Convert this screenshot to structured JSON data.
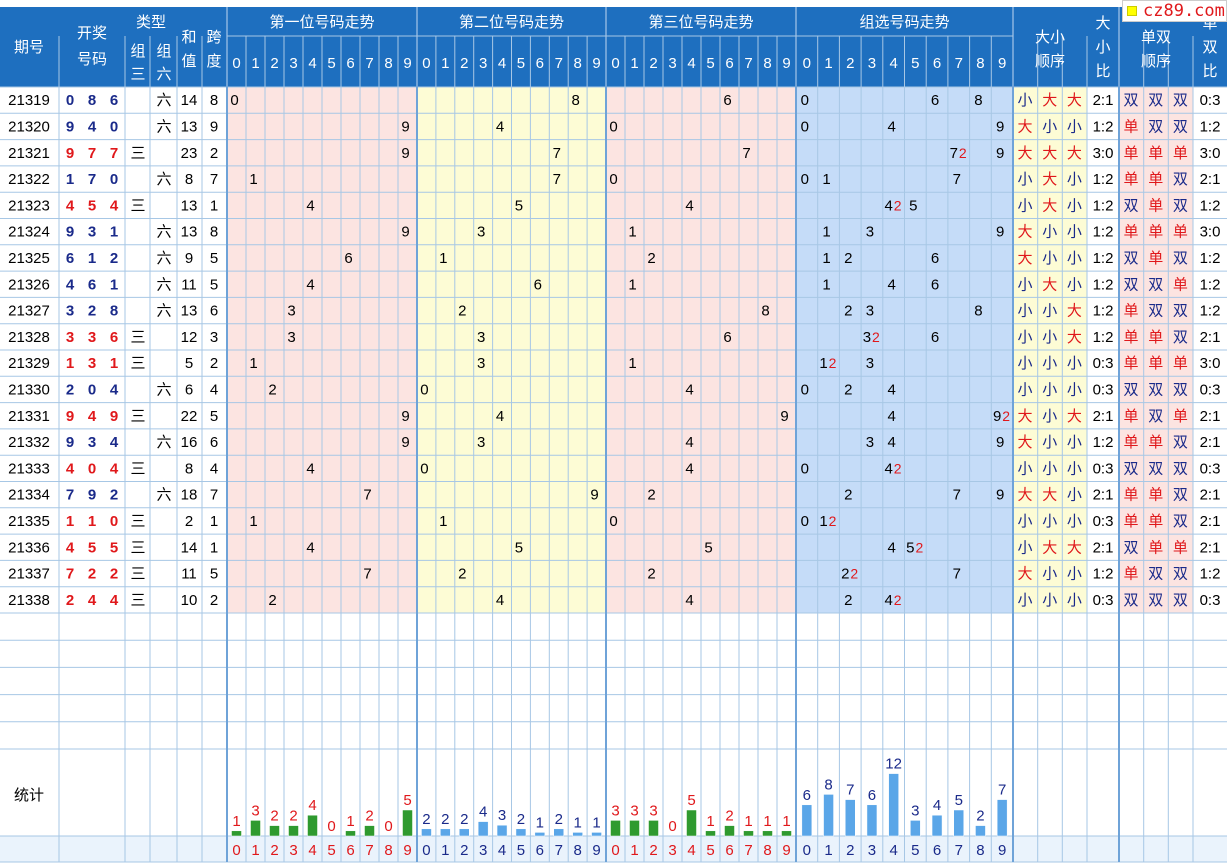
{
  "logo": {
    "text": "cz89.com"
  },
  "header": {
    "issue": "期号",
    "draw": "开奖号码",
    "type": "类型",
    "z3": "组三",
    "z6": "组六",
    "sum": "和值",
    "span": "跨度",
    "pos1": "第一位号码走势",
    "pos2": "第二位号码走势",
    "pos3": "第三位号码走势",
    "group": "组选号码走势",
    "dxorder": "大小顺序",
    "dxratio": "大小比",
    "dsorder": "单双顺序",
    "dsratio": "单双比",
    "digits": [
      "0",
      "1",
      "2",
      "3",
      "4",
      "5",
      "6",
      "7",
      "8",
      "9"
    ]
  },
  "stats_label": "统计",
  "labels": {
    "z3": "三",
    "z6": "六"
  },
  "rows": [
    {
      "issue": "21319",
      "nums": [
        0,
        8,
        6
      ],
      "type": "z6",
      "sum": 14,
      "span": 8,
      "dx": [
        "小",
        "大",
        "大"
      ],
      "dxr": "2:1",
      "ds": [
        "双",
        "双",
        "双"
      ],
      "dsr": "0:3"
    },
    {
      "issue": "21320",
      "nums": [
        9,
        4,
        0
      ],
      "type": "z6",
      "sum": 13,
      "span": 9,
      "dx": [
        "大",
        "小",
        "小"
      ],
      "dxr": "1:2",
      "ds": [
        "单",
        "双",
        "双"
      ],
      "dsr": "1:2"
    },
    {
      "issue": "21321",
      "nums": [
        9,
        7,
        7
      ],
      "type": "z3",
      "sum": 23,
      "span": 2,
      "dx": [
        "大",
        "大",
        "大"
      ],
      "dxr": "3:0",
      "ds": [
        "单",
        "单",
        "单"
      ],
      "dsr": "3:0"
    },
    {
      "issue": "21322",
      "nums": [
        1,
        7,
        0
      ],
      "type": "z6",
      "sum": 8,
      "span": 7,
      "dx": [
        "小",
        "大",
        "小"
      ],
      "dxr": "1:2",
      "ds": [
        "单",
        "单",
        "双"
      ],
      "dsr": "2:1"
    },
    {
      "issue": "21323",
      "nums": [
        4,
        5,
        4
      ],
      "type": "z3",
      "sum": 13,
      "span": 1,
      "dx": [
        "小",
        "大",
        "小"
      ],
      "dxr": "1:2",
      "ds": [
        "双",
        "单",
        "双"
      ],
      "dsr": "1:2"
    },
    {
      "issue": "21324",
      "nums": [
        9,
        3,
        1
      ],
      "type": "z6",
      "sum": 13,
      "span": 8,
      "dx": [
        "大",
        "小",
        "小"
      ],
      "dxr": "1:2",
      "ds": [
        "单",
        "单",
        "单"
      ],
      "dsr": "3:0"
    },
    {
      "issue": "21325",
      "nums": [
        6,
        1,
        2
      ],
      "type": "z6",
      "sum": 9,
      "span": 5,
      "dx": [
        "大",
        "小",
        "小"
      ],
      "dxr": "1:2",
      "ds": [
        "双",
        "单",
        "双"
      ],
      "dsr": "1:2"
    },
    {
      "issue": "21326",
      "nums": [
        4,
        6,
        1
      ],
      "type": "z6",
      "sum": 11,
      "span": 5,
      "dx": [
        "小",
        "大",
        "小"
      ],
      "dxr": "1:2",
      "ds": [
        "双",
        "双",
        "单"
      ],
      "dsr": "1:2"
    },
    {
      "issue": "21327",
      "nums": [
        3,
        2,
        8
      ],
      "type": "z6",
      "sum": 13,
      "span": 6,
      "dx": [
        "小",
        "小",
        "大"
      ],
      "dxr": "1:2",
      "ds": [
        "单",
        "双",
        "双"
      ],
      "dsr": "1:2"
    },
    {
      "issue": "21328",
      "nums": [
        3,
        3,
        6
      ],
      "type": "z3",
      "sum": 12,
      "span": 3,
      "dx": [
        "小",
        "小",
        "大"
      ],
      "dxr": "1:2",
      "ds": [
        "单",
        "单",
        "双"
      ],
      "dsr": "2:1"
    },
    {
      "issue": "21329",
      "nums": [
        1,
        3,
        1
      ],
      "type": "z3",
      "sum": 5,
      "span": 2,
      "dx": [
        "小",
        "小",
        "小"
      ],
      "dxr": "0:3",
      "ds": [
        "单",
        "单",
        "单"
      ],
      "dsr": "3:0"
    },
    {
      "issue": "21330",
      "nums": [
        2,
        0,
        4
      ],
      "type": "z6",
      "sum": 6,
      "span": 4,
      "dx": [
        "小",
        "小",
        "小"
      ],
      "dxr": "0:3",
      "ds": [
        "双",
        "双",
        "双"
      ],
      "dsr": "0:3"
    },
    {
      "issue": "21331",
      "nums": [
        9,
        4,
        9
      ],
      "type": "z3",
      "sum": 22,
      "span": 5,
      "dx": [
        "大",
        "小",
        "大"
      ],
      "dxr": "2:1",
      "ds": [
        "单",
        "双",
        "单"
      ],
      "dsr": "2:1"
    },
    {
      "issue": "21332",
      "nums": [
        9,
        3,
        4
      ],
      "type": "z6",
      "sum": 16,
      "span": 6,
      "dx": [
        "大",
        "小",
        "小"
      ],
      "dxr": "1:2",
      "ds": [
        "单",
        "单",
        "双"
      ],
      "dsr": "2:1"
    },
    {
      "issue": "21333",
      "nums": [
        4,
        0,
        4
      ],
      "type": "z3",
      "sum": 8,
      "span": 4,
      "dx": [
        "小",
        "小",
        "小"
      ],
      "dxr": "0:3",
      "ds": [
        "双",
        "双",
        "双"
      ],
      "dsr": "0:3"
    },
    {
      "issue": "21334",
      "nums": [
        7,
        9,
        2
      ],
      "type": "z6",
      "sum": 18,
      "span": 7,
      "dx": [
        "大",
        "大",
        "小"
      ],
      "dxr": "2:1",
      "ds": [
        "单",
        "单",
        "双"
      ],
      "dsr": "2:1"
    },
    {
      "issue": "21335",
      "nums": [
        1,
        1,
        0
      ],
      "type": "z3",
      "sum": 2,
      "span": 1,
      "dx": [
        "小",
        "小",
        "小"
      ],
      "dxr": "0:3",
      "ds": [
        "单",
        "单",
        "双"
      ],
      "dsr": "2:1"
    },
    {
      "issue": "21336",
      "nums": [
        4,
        5,
        5
      ],
      "type": "z3",
      "sum": 14,
      "span": 1,
      "dx": [
        "小",
        "大",
        "大"
      ],
      "dxr": "2:1",
      "ds": [
        "双",
        "单",
        "单"
      ],
      "dsr": "2:1"
    },
    {
      "issue": "21337",
      "nums": [
        7,
        2,
        2
      ],
      "type": "z3",
      "sum": 11,
      "span": 5,
      "dx": [
        "大",
        "小",
        "小"
      ],
      "dxr": "1:2",
      "ds": [
        "单",
        "双",
        "双"
      ],
      "dsr": "1:2"
    },
    {
      "issue": "21338",
      "nums": [
        2,
        4,
        4
      ],
      "type": "z3",
      "sum": 10,
      "span": 2,
      "dx": [
        "小",
        "小",
        "小"
      ],
      "dxr": "0:3",
      "ds": [
        "双",
        "双",
        "双"
      ],
      "dsr": "0:3"
    }
  ],
  "stats": {
    "pos1": [
      1,
      3,
      2,
      2,
      4,
      0,
      1,
      2,
      0,
      5
    ],
    "pos2": [
      2,
      2,
      2,
      4,
      3,
      2,
      1,
      2,
      1,
      1
    ],
    "pos3": [
      3,
      3,
      3,
      0,
      5,
      1,
      2,
      1,
      1,
      1
    ],
    "group": [
      6,
      8,
      7,
      6,
      12,
      3,
      4,
      5,
      2,
      7
    ]
  },
  "colors": {
    "header_bg": "#1e6fbf",
    "pos1_bg": "#fce4e1",
    "pos2_bg": "#fdfcd5",
    "pos3_bg": "#fce4e1",
    "group_bg": "#c5dcf8",
    "dx_bg": "#fdfcd5",
    "ds_bg": "#fce4e1",
    "grid": "#a7c7e5",
    "red": "#e0181b",
    "navy": "#1a2a8a",
    "green_bar": "#2f9a2f",
    "blue_bar": "#5aa6e8"
  }
}
